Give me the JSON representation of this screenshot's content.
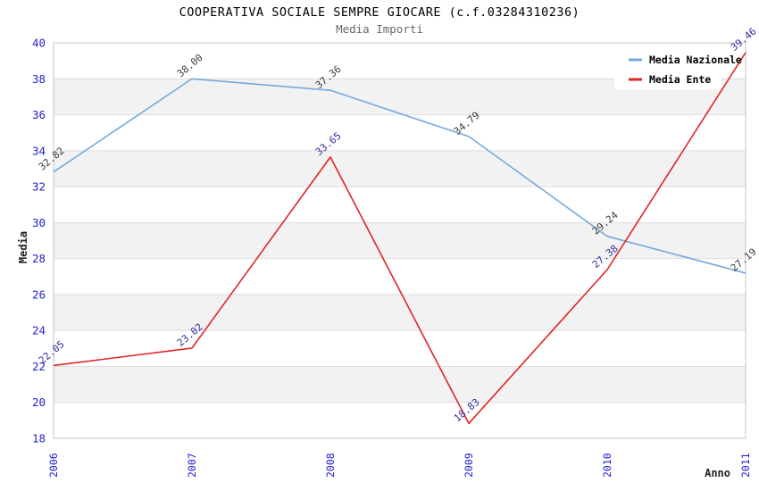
{
  "chart_data": {
    "type": "line",
    "title": "COOPERATIVA SOCIALE SEMPRE GIOCARE (c.f.03284310236)",
    "subtitle": "Media Importi",
    "xlabel": "Anno",
    "ylabel": "Media",
    "categories": [
      "2006",
      "2007",
      "2008",
      "2009",
      "2010",
      "2011"
    ],
    "series": [
      {
        "name": "Media Nazionale",
        "color": "#74a9dc",
        "label_color": "#3a3a3a",
        "values": [
          32.82,
          38.0,
          37.36,
          34.79,
          29.24,
          27.19
        ]
      },
      {
        "name": "Media Ente",
        "color": "#e02424",
        "label_color": "#2f2f99",
        "values": [
          22.05,
          23.02,
          33.65,
          18.83,
          27.38,
          39.46
        ]
      }
    ],
    "ylim": [
      18,
      40
    ],
    "yticks": [
      18,
      20,
      22,
      24,
      26,
      28,
      30,
      32,
      34,
      36,
      38,
      40
    ],
    "grid": "horizontal-alternating-bands",
    "legend_position": "top-right",
    "colors": {
      "tick_label": "#2121cf",
      "axis_title": "#222222",
      "band_gray": "#f2f2f2",
      "band_white": "#ffffff",
      "gridline": "#dedede",
      "plot_border": "#c4c4c4",
      "legend_text": "#000000"
    }
  }
}
